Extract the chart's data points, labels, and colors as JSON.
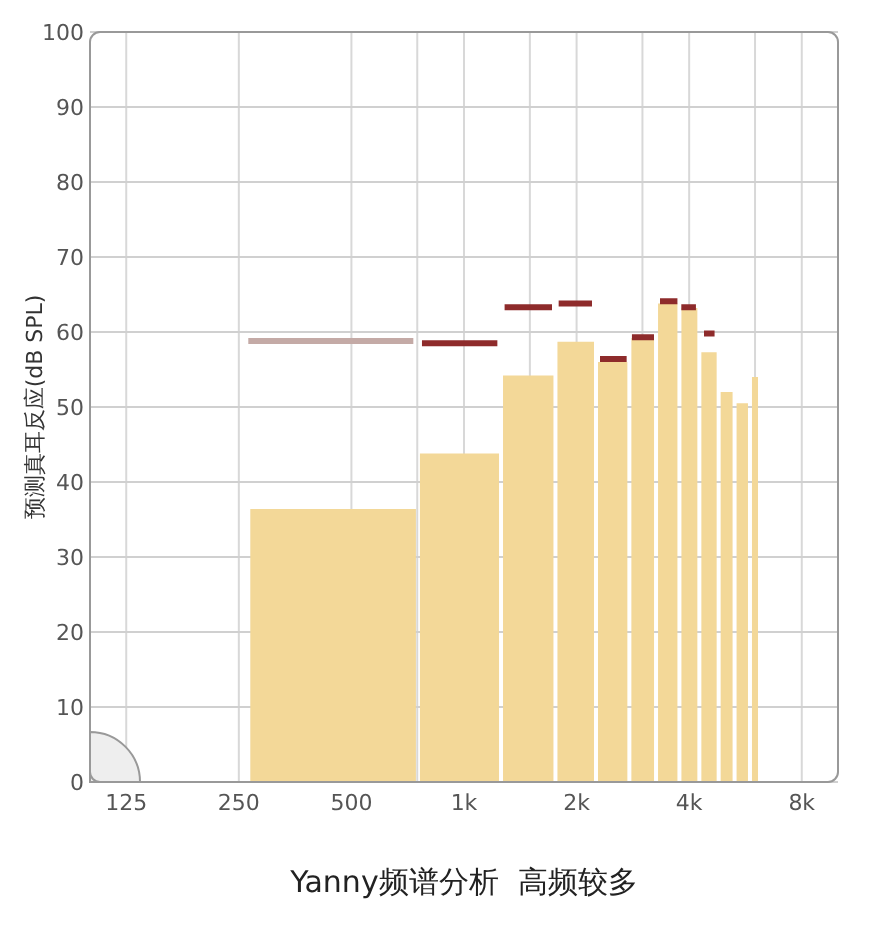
{
  "chart_data": {
    "type": "histogram",
    "title": "Yanny频谱分析  高频较多",
    "ylabel": "预测真耳反应(dB SPL)",
    "log": "x",
    "grid": true,
    "xlim": [
      100,
      10000
    ],
    "ylim": [
      0,
      100
    ],
    "xticks": [
      {
        "value": 125,
        "label": "125"
      },
      {
        "value": 250,
        "label": "250"
      },
      {
        "value": 500,
        "label": "500"
      },
      {
        "value": 750,
        "label": null
      },
      {
        "value": 1000,
        "label": "1k"
      },
      {
        "value": 1500,
        "label": null
      },
      {
        "value": 2000,
        "label": "2k"
      },
      {
        "value": 3000,
        "label": null
      },
      {
        "value": 4000,
        "label": "4k"
      },
      {
        "value": 6000,
        "label": null
      },
      {
        "value": 8000,
        "label": "8k"
      }
    ],
    "yticks": [
      0,
      10,
      20,
      30,
      40,
      50,
      60,
      70,
      80,
      90,
      100
    ],
    "color": "#f3d898",
    "bins": [
      265,
      753,
      1256,
      1756,
      2254,
      2768,
      3262,
      3767,
      4259,
      4796,
      5290,
      5816,
      6187
    ],
    "values": [
      36.4,
      43.8,
      54.2,
      58.7,
      56,
      59.2,
      63.8,
      63.2,
      57.3,
      52,
      50.5,
      54
    ],
    "series": [
      {
        "type": "line",
        "color": "#c4aaa6",
        "x": [
          265,
          732
        ],
        "values": [
          58.8,
          58.8
        ]
      },
      {
        "type": "line",
        "color": "#8e2b2b",
        "x": [
          772,
          1228
        ],
        "values": [
          58.5,
          58.5
        ]
      },
      {
        "type": "line",
        "color": "#8e2b2b",
        "x": [
          1284,
          1719
        ],
        "values": [
          63.3,
          63.3
        ]
      },
      {
        "type": "line",
        "color": "#8e2b2b",
        "x": [
          1791,
          2199
        ],
        "values": [
          63.8,
          63.8
        ]
      },
      {
        "type": "line",
        "color": "#8e2b2b",
        "x": [
          2310,
          2722
        ],
        "values": [
          56.4,
          56.4
        ]
      },
      {
        "type": "line",
        "color": "#8e2b2b",
        "x": [
          2812,
          3221
        ],
        "values": [
          59.3,
          59.3
        ]
      },
      {
        "type": "line",
        "color": "#8e2b2b",
        "x": [
          3342,
          3721
        ],
        "values": [
          64.1,
          64.1
        ]
      },
      {
        "type": "line",
        "color": "#8e2b2b",
        "x": [
          3811,
          4170
        ],
        "values": [
          63.3,
          63.3
        ]
      },
      {
        "type": "line",
        "color": "#8e2b2b",
        "x": [
          4383,
          4677
        ],
        "values": [
          59.8,
          59.8
        ]
      }
    ]
  }
}
